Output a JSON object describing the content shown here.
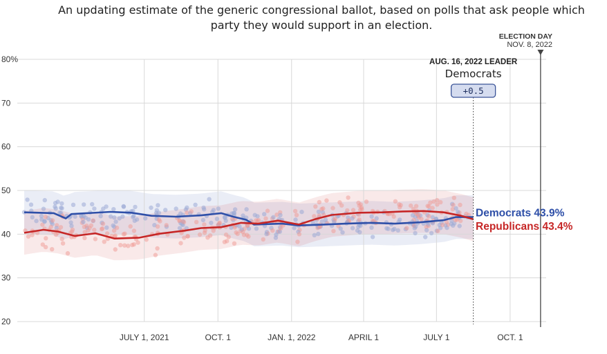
{
  "subtitle": "An updating estimate of the generic congressional ballot, based on polls that ask people which party they would support in an election.",
  "election_day": {
    "title": "ELECTION DAY",
    "date": "NOV. 8, 2022"
  },
  "leader": {
    "date_label": "AUG. 16, 2022 LEADER",
    "party": "Democrats",
    "margin": "+0.5"
  },
  "colors": {
    "democrats": "#2e4fa8",
    "republicans": "#c62626",
    "dem_poll": "#9aa9d6",
    "rep_poll": "#ef9a93",
    "grid": "#d8d8d8"
  },
  "chart_data": {
    "type": "line",
    "title": "",
    "xlabel": "",
    "ylabel": "",
    "ylim": [
      20,
      80
    ],
    "ytick_labels": [
      "80%",
      "70",
      "60",
      "50",
      "40",
      "30",
      "20"
    ],
    "ytick_values": [
      80,
      70,
      60,
      50,
      40,
      30,
      20
    ],
    "xlim": [
      "2021-02-01",
      "2022-11-15"
    ],
    "xtick_labels": [
      "JULY 1, 2021",
      "OCT. 1",
      "JAN. 1, 2022",
      "APRIL 1",
      "JULY 1",
      "OCT. 1"
    ],
    "xtick_dates": [
      "2021-07-01",
      "2021-10-01",
      "2022-01-01",
      "2022-04-01",
      "2022-07-01",
      "2022-10-01"
    ],
    "current_date": "2022-08-16",
    "election_date": "2022-11-08",
    "series": [
      {
        "name": "Democrats",
        "end_label": "Democrats 43.9%",
        "color": "#2e4fa8",
        "points": [
          [
            "2021-02-01",
            45.0
          ],
          [
            "2021-03-10",
            44.8
          ],
          [
            "2021-03-25",
            43.6
          ],
          [
            "2021-04-01",
            44.6
          ],
          [
            "2021-05-20",
            45.1
          ],
          [
            "2021-06-15",
            44.9
          ],
          [
            "2021-07-10",
            44.2
          ],
          [
            "2021-08-10",
            44.0
          ],
          [
            "2021-09-10",
            44.3
          ],
          [
            "2021-10-05",
            44.8
          ],
          [
            "2021-10-20",
            44.0
          ],
          [
            "2021-11-05",
            43.3
          ],
          [
            "2021-11-15",
            42.2
          ],
          [
            "2021-12-20",
            42.4
          ],
          [
            "2022-01-10",
            42.0
          ],
          [
            "2022-02-10",
            42.2
          ],
          [
            "2022-03-10",
            42.4
          ],
          [
            "2022-04-10",
            42.6
          ],
          [
            "2022-05-10",
            42.4
          ],
          [
            "2022-06-10",
            42.7
          ],
          [
            "2022-07-10",
            43.2
          ],
          [
            "2022-07-25",
            43.9
          ],
          [
            "2022-08-16",
            43.9
          ]
        ]
      },
      {
        "name": "Republicans",
        "end_label": "Republicans 43.4%",
        "color": "#c62626",
        "points": [
          [
            "2021-02-01",
            40.3
          ],
          [
            "2021-02-25",
            41.0
          ],
          [
            "2021-03-15",
            40.6
          ],
          [
            "2021-04-05",
            39.6
          ],
          [
            "2021-05-01",
            40.2
          ],
          [
            "2021-05-25",
            39.0
          ],
          [
            "2021-06-25",
            39.2
          ],
          [
            "2021-07-20",
            40.1
          ],
          [
            "2021-08-20",
            40.8
          ],
          [
            "2021-09-10",
            41.4
          ],
          [
            "2021-10-05",
            41.6
          ],
          [
            "2021-10-30",
            42.6
          ],
          [
            "2021-11-20",
            42.4
          ],
          [
            "2021-12-15",
            43.1
          ],
          [
            "2022-01-10",
            42.2
          ],
          [
            "2022-01-30",
            43.4
          ],
          [
            "2022-02-20",
            44.4
          ],
          [
            "2022-03-25",
            44.9
          ],
          [
            "2022-04-25",
            45.0
          ],
          [
            "2022-05-20",
            45.2
          ],
          [
            "2022-06-15",
            45.3
          ],
          [
            "2022-07-10",
            45.0
          ],
          [
            "2022-08-01",
            44.2
          ],
          [
            "2022-08-16",
            43.4
          ]
        ]
      }
    ]
  }
}
